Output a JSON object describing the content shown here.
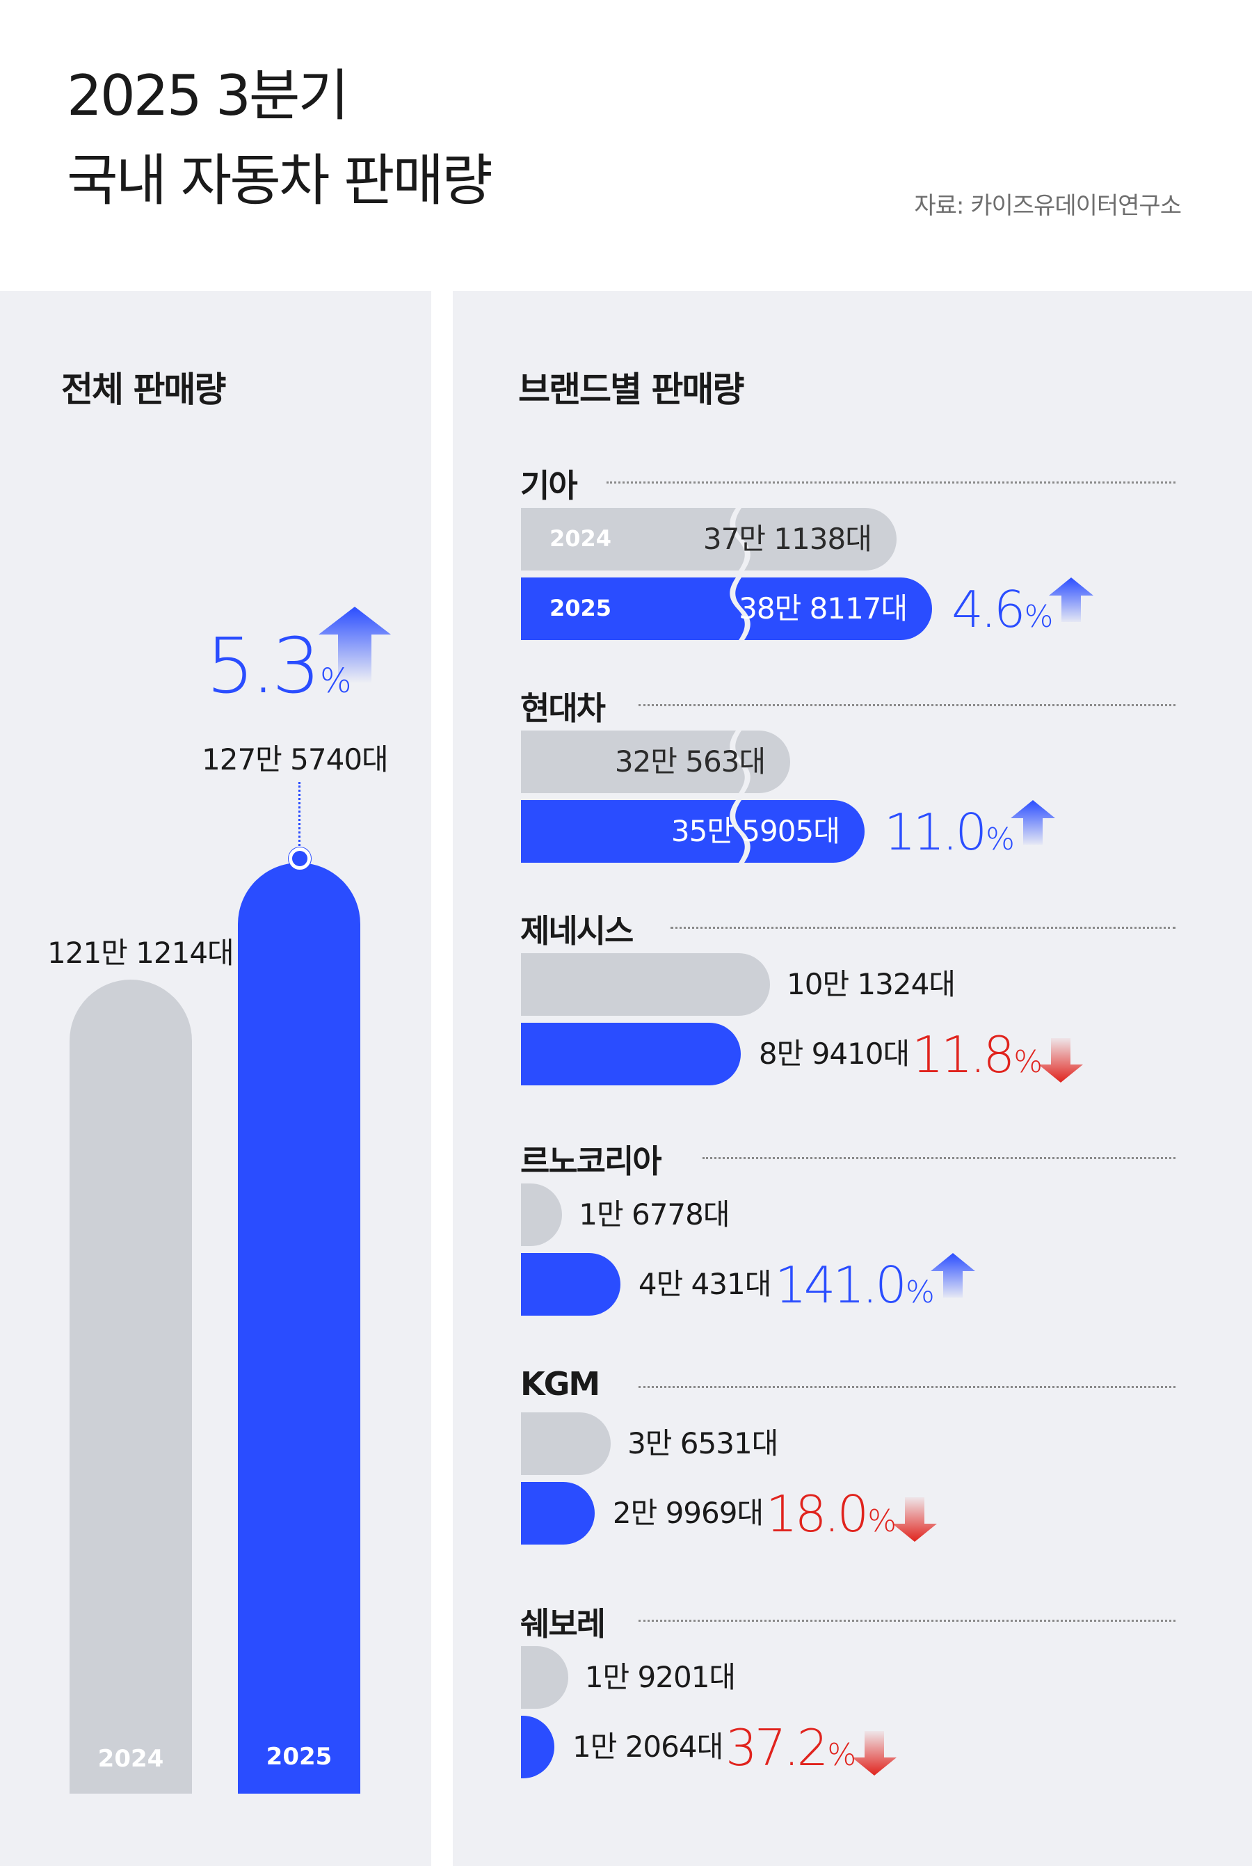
{
  "header": {
    "title_line1": "2025 3분기",
    "title_line2": "국내 자동차 판매량",
    "source": "자료: 카이즈유데이터연구소"
  },
  "colors": {
    "accent_blue": "#2a4dff",
    "gray_bar": "#cdd0d6",
    "down_red": "#e0231d",
    "panel_bg": "#eff0f4"
  },
  "total": {
    "title": "전체 판매량",
    "label_2024": "2024",
    "label_2025": "2025",
    "value_2024": "121만 1214대",
    "value_2025": "127만 5740대",
    "change": "5.3",
    "change_unit": "%",
    "direction": "up"
  },
  "brands": {
    "title": "브랜드별 판매량",
    "year_2024": "2024",
    "year_2025": "2025",
    "items": [
      {
        "name": "기아",
        "v2024": "37만 1138대",
        "v2025": "38만 8117대",
        "change": "4.6",
        "unit": "%",
        "direction": "up"
      },
      {
        "name": "현대차",
        "v2024": "32만 563대",
        "v2025": "35만 5905대",
        "change": "11.0",
        "unit": "%",
        "direction": "up"
      },
      {
        "name": "제네시스",
        "v2024": "10만 1324대",
        "v2025": "8만 9410대",
        "change": "11.8",
        "unit": "%",
        "direction": "down"
      },
      {
        "name": "르노코리아",
        "v2024": "1만 6778대",
        "v2025": "4만 431대",
        "change": "141.0",
        "unit": "%",
        "direction": "up"
      },
      {
        "name": "KGM",
        "v2024": "3만 6531대",
        "v2025": "2만 9969대",
        "change": "18.0",
        "unit": "%",
        "direction": "down"
      },
      {
        "name": "쉐보레",
        "v2024": "1만 9201대",
        "v2025": "1만 2064대",
        "change": "37.2",
        "unit": "%",
        "direction": "down"
      }
    ]
  },
  "chart_data": [
    {
      "type": "bar",
      "title": "전체 판매량",
      "categories": [
        "2024",
        "2025"
      ],
      "values": [
        1211214,
        1275740
      ],
      "labels": [
        "121만 1214대",
        "127만 5740대"
      ],
      "change_percent": 5.3
    },
    {
      "type": "bar",
      "title": "브랜드별 판매량",
      "orientation": "horizontal",
      "categories": [
        "기아",
        "현대차",
        "제네시스",
        "르노코리아",
        "KGM",
        "쉐보레"
      ],
      "series": [
        {
          "name": "2024",
          "values": [
            371138,
            320563,
            101324,
            16778,
            36531,
            19201
          ]
        },
        {
          "name": "2025",
          "values": [
            388117,
            355905,
            89410,
            40431,
            29969,
            12064
          ]
        }
      ],
      "change_percent": [
        4.6,
        11.0,
        -11.8,
        141.0,
        -18.0,
        -37.2
      ]
    }
  ]
}
